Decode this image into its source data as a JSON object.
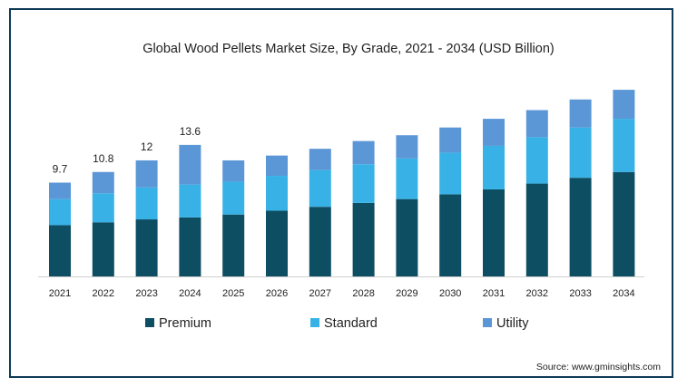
{
  "colors": {
    "frame": "#0e3a56",
    "premium": "#0d4e63",
    "standard": "#38b2e6",
    "utility": "#5b97d6"
  },
  "chart_data": {
    "type": "bar",
    "stacked": true,
    "title": "Global Wood Pellets Market Size, By Grade, 2021 - 2034 (USD Billion)",
    "categories": [
      "2021",
      "2022",
      "2023",
      "2024",
      "2025",
      "2026",
      "2027",
      "2028",
      "2029",
      "2030",
      "2031",
      "2032",
      "2033",
      "2034"
    ],
    "series": [
      {
        "name": "Premium",
        "values": [
          5.3,
          5.6,
          5.9,
          6.1,
          6.4,
          6.8,
          7.2,
          7.6,
          8.0,
          8.5,
          9.0,
          9.6,
          10.2,
          10.8
        ]
      },
      {
        "name": "Standard",
        "values": [
          2.7,
          3.0,
          3.3,
          3.4,
          3.4,
          3.6,
          3.8,
          4.0,
          4.2,
          4.3,
          4.5,
          4.8,
          5.2,
          5.5
        ]
      },
      {
        "name": "Utility",
        "values": [
          1.7,
          2.2,
          2.8,
          4.1,
          2.2,
          2.1,
          2.2,
          2.4,
          2.4,
          2.6,
          2.8,
          2.8,
          2.9,
          3.0
        ]
      }
    ],
    "data_labels": [
      "9.7",
      "10.8",
      "12",
      "13.6"
    ],
    "ylim": [
      0,
      20
    ],
    "xlabel": "",
    "ylabel": "",
    "legend": {
      "position": "bottom",
      "items": [
        "Premium",
        "Standard",
        "Utility"
      ]
    },
    "grid": false
  },
  "source": "Source: www.gminsights.com"
}
